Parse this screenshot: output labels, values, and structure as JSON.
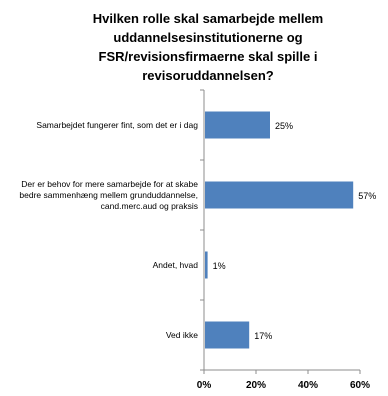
{
  "chart_data": {
    "type": "bar",
    "orientation": "horizontal",
    "title": "Hvilken rolle skal samarbejde mellem uddannelsesinstitutionerne og FSR/revisionsfirmaerne skal spille i revisoruddannelsen?",
    "categories": [
      "Samarbejdet fungerer fint, som det er i dag",
      "Der er behov for mere samarbejde for at skabe bedre sammenhæng mellem grunduddannelse, cand.merc.aud og praksis",
      "Andet, hvad",
      "Ved ikke"
    ],
    "values": [
      25,
      57,
      1,
      17
    ],
    "value_labels": [
      "25%",
      "57%",
      "1%",
      "17%"
    ],
    "xlim": [
      0,
      60
    ],
    "x_ticks": [
      0,
      20,
      40,
      60
    ],
    "x_tick_labels": [
      "0%",
      "20%",
      "40%",
      "60%"
    ],
    "xlabel": "",
    "ylabel": "",
    "grid": false,
    "legend": "none",
    "bar_color": "#4f81bd"
  }
}
